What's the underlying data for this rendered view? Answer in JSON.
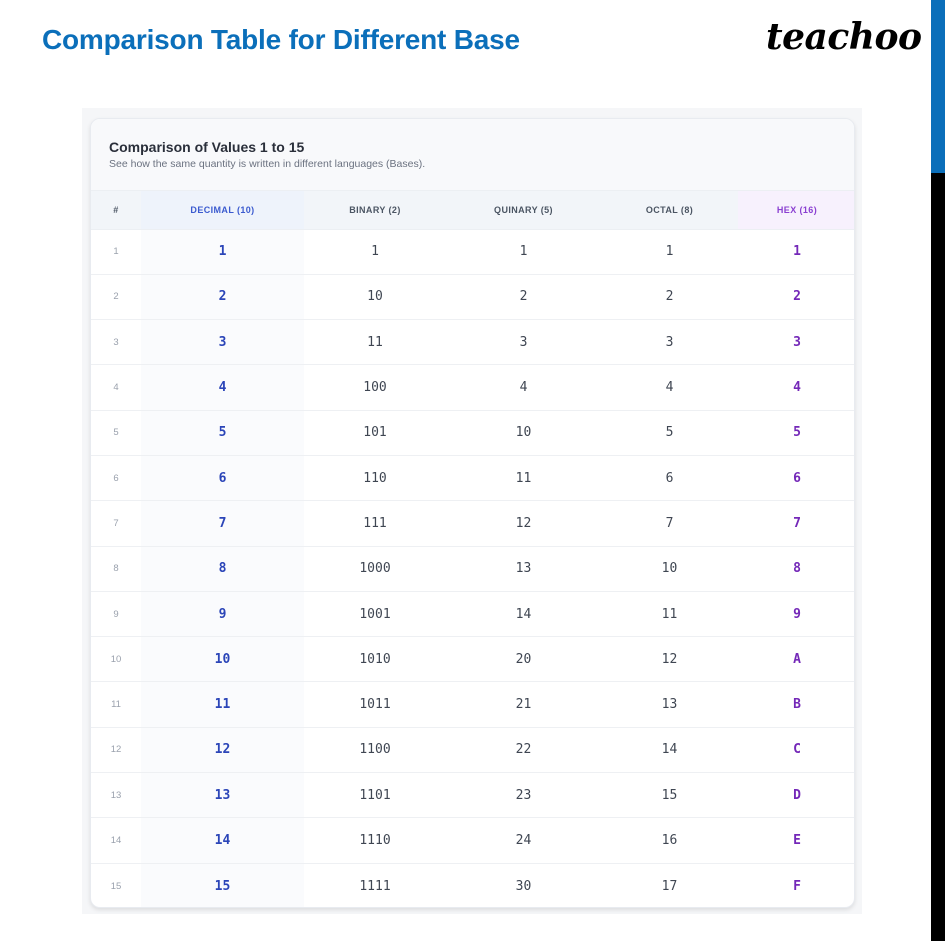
{
  "page": {
    "title": "Comparison Table for Different Base",
    "logo": "teachoo",
    "accent_color": "#0b6fba"
  },
  "card": {
    "title": "Comparison of Values 1 to 15",
    "subtitle": "See how the same quantity is written in different languages (Bases)."
  },
  "table": {
    "columns": [
      "#",
      "DECIMAL (10)",
      "BINARY (2)",
      "QUINARY (5)",
      "OCTAL (8)",
      "HEX (16)"
    ],
    "column_colors": {
      "decimal": "#2b45b8",
      "hex": "#7428b8"
    },
    "rows": [
      [
        "1",
        "1",
        "1",
        "1",
        "1",
        "1"
      ],
      [
        "2",
        "2",
        "10",
        "2",
        "2",
        "2"
      ],
      [
        "3",
        "3",
        "11",
        "3",
        "3",
        "3"
      ],
      [
        "4",
        "4",
        "100",
        "4",
        "4",
        "4"
      ],
      [
        "5",
        "5",
        "101",
        "10",
        "5",
        "5"
      ],
      [
        "6",
        "6",
        "110",
        "11",
        "6",
        "6"
      ],
      [
        "7",
        "7",
        "111",
        "12",
        "7",
        "7"
      ],
      [
        "8",
        "8",
        "1000",
        "13",
        "10",
        "8"
      ],
      [
        "9",
        "9",
        "1001",
        "14",
        "11",
        "9"
      ],
      [
        "10",
        "10",
        "1010",
        "20",
        "12",
        "A"
      ],
      [
        "11",
        "11",
        "1011",
        "21",
        "13",
        "B"
      ],
      [
        "12",
        "12",
        "1100",
        "22",
        "14",
        "C"
      ],
      [
        "13",
        "13",
        "1101",
        "23",
        "15",
        "D"
      ],
      [
        "14",
        "14",
        "1110",
        "24",
        "16",
        "E"
      ],
      [
        "15",
        "15",
        "1111",
        "30",
        "17",
        "F"
      ]
    ]
  }
}
